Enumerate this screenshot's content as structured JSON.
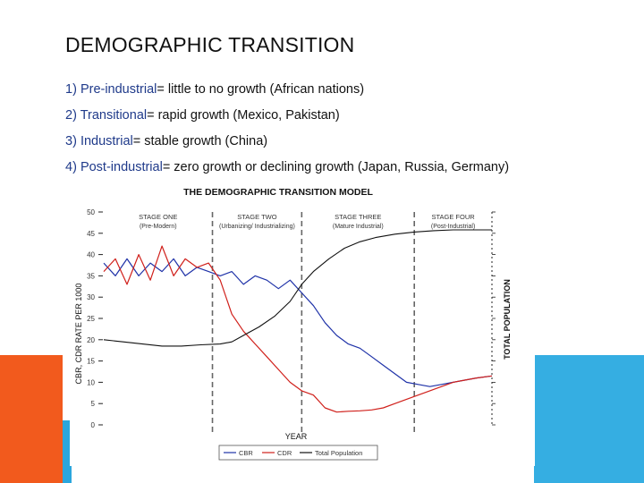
{
  "slide": {
    "title": "DEMOGRAPHIC TRANSITION",
    "bullets": [
      {
        "number": "1)",
        "term": "Pre-industrial",
        "rest": "= little to no growth (African nations)"
      },
      {
        "number": "2)",
        "term": "Transitional",
        "rest": "= rapid growth (Mexico, Pakistan)"
      },
      {
        "number": "3)",
        "term": "Industrial",
        "rest": "= stable growth (China)"
      },
      {
        "number": "4)",
        "term": "Post-industrial",
        "rest": "= zero growth or declining growth (Japan, Russia, Germany)"
      }
    ]
  },
  "theme": {
    "orange": "#f25a1d",
    "blue": "#35aee2",
    "term_color": "#1f3a8a"
  },
  "chart_data": {
    "type": "line",
    "title": "THE DEMOGRAPHIC TRANSITION MODEL",
    "xlabel": "YEAR",
    "ylabel": "CBR, CDR RATE PER 1000",
    "y2label": "TOTAL POPULATION",
    "ylim": [
      0,
      50
    ],
    "xlim": [
      0,
      100
    ],
    "yticks": [
      "0",
      "5",
      "10",
      "15",
      "20",
      "25",
      "30",
      "35",
      "40",
      "45",
      "50"
    ],
    "stage_boundaries": [
      28,
      51,
      80
    ],
    "stages": [
      {
        "name": "STAGE ONE",
        "sub": "(Pre-Modern)"
      },
      {
        "name": "STAGE TWO",
        "sub": "(Urbanizing/ Industrializing)"
      },
      {
        "name": "STAGE THREE",
        "sub": "(Mature Industrial)"
      },
      {
        "name": "STAGE FOUR",
        "sub": "(Post-Industrial)"
      }
    ],
    "legend": [
      "CBR",
      "CDR",
      "Total Population"
    ],
    "series": [
      {
        "name": "CBR",
        "color": "#1f32a8",
        "x": [
          0,
          3,
          6,
          9,
          12,
          15,
          18,
          21,
          24,
          27,
          30,
          33,
          36,
          39,
          42,
          45,
          48,
          51,
          54,
          57,
          60,
          63,
          66,
          69,
          72,
          75,
          78,
          81,
          84,
          87,
          90,
          93,
          96,
          100
        ],
        "y": [
          38,
          35,
          39,
          35,
          38,
          36,
          39,
          35,
          37,
          36,
          35,
          36,
          33,
          35,
          34,
          32,
          34,
          31,
          28,
          24,
          21,
          19,
          18,
          16,
          14,
          12,
          10,
          9.5,
          9,
          9.5,
          10,
          10.5,
          11,
          11.5
        ]
      },
      {
        "name": "CDR",
        "color": "#d0201b",
        "x": [
          0,
          3,
          6,
          9,
          12,
          15,
          18,
          21,
          24,
          27,
          30,
          33,
          36,
          39,
          42,
          45,
          48,
          51,
          54,
          57,
          60,
          63,
          66,
          69,
          72,
          75,
          78,
          81,
          84,
          87,
          90,
          93,
          96,
          100
        ],
        "y": [
          36,
          39,
          33,
          40,
          34,
          42,
          35,
          39,
          37,
          38,
          34,
          26,
          22,
          19,
          16,
          13,
          10,
          8,
          7,
          4,
          3,
          3.2,
          3.3,
          3.5,
          4,
          5,
          6,
          7,
          8,
          9,
          10,
          10.5,
          11,
          11.5
        ]
      },
      {
        "name": "Total Population",
        "color": "#111111",
        "x": [
          0,
          5,
          10,
          15,
          20,
          25,
          30,
          33,
          36,
          40,
          44,
          48,
          51,
          54,
          58,
          62,
          66,
          70,
          75,
          80,
          85,
          90,
          95,
          100
        ],
        "y": [
          20,
          19.5,
          19,
          18.5,
          18.5,
          18.8,
          19,
          19.5,
          21,
          23,
          25.5,
          29,
          33,
          36,
          39,
          41.5,
          43,
          44,
          44.8,
          45.3,
          45.6,
          45.8,
          45.8,
          45.8
        ]
      }
    ]
  }
}
